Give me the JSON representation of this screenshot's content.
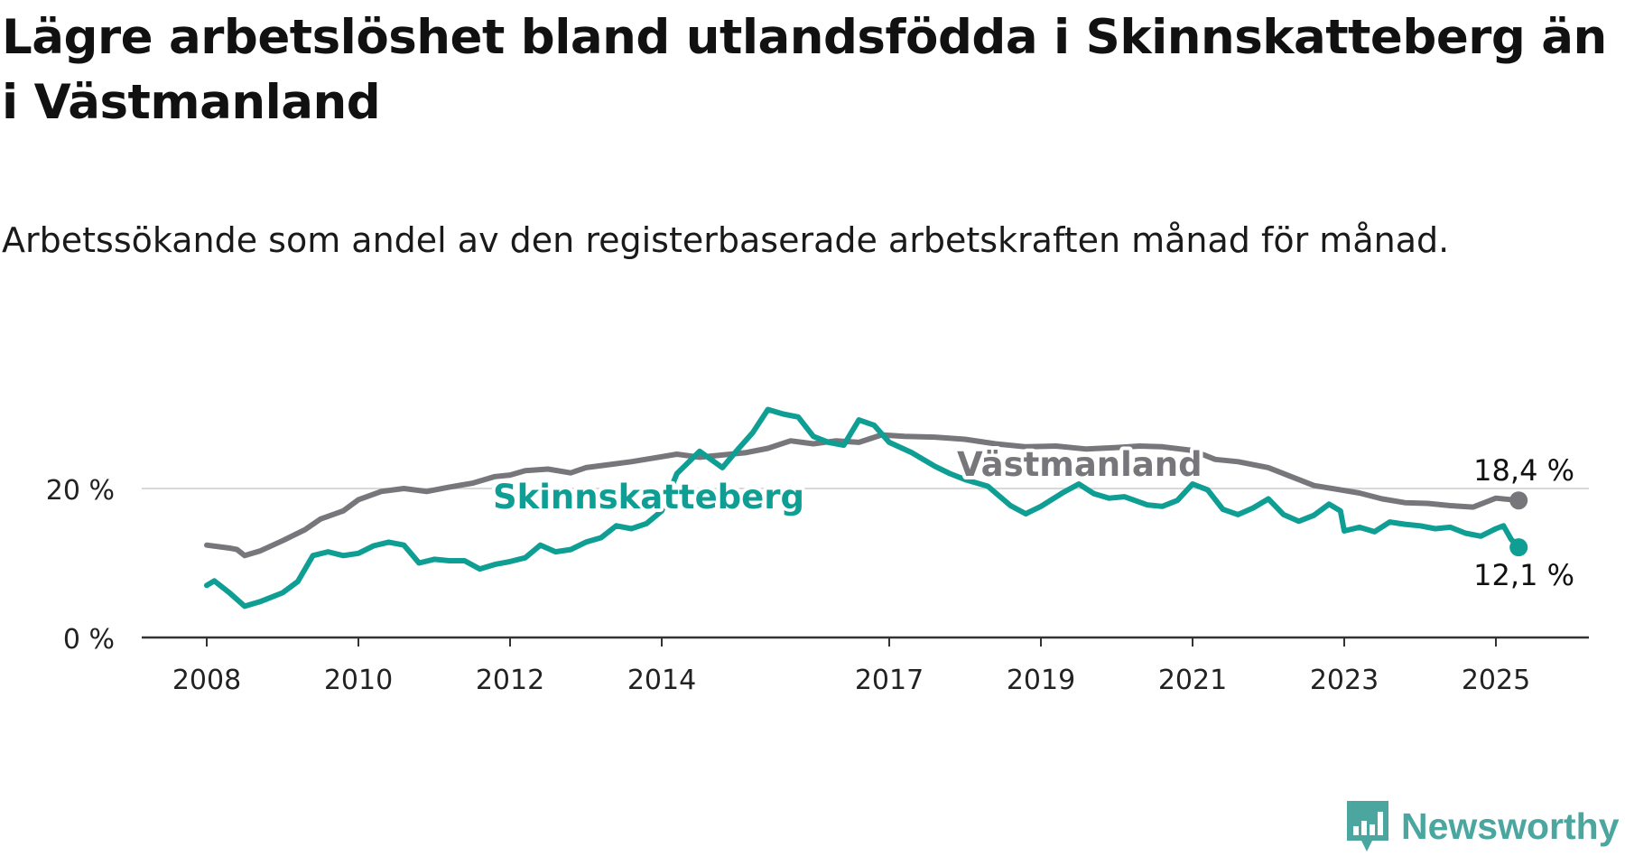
{
  "title": "Lägre arbetslöshet bland utlandsfödda i Skinnskatteberg än i Västmanland",
  "subtitle": "Arbetssökande som andel av den registerbaserade arbetskraften månad för månad.",
  "brand": {
    "name": "Newsworthy",
    "icon": "newsworthy-logo-icon",
    "color": "#4aa69e"
  },
  "chart_data": {
    "type": "line",
    "title": "Lägre arbetslöshet bland utlandsfödda i Skinnskatteberg än i Västmanland",
    "subtitle": "Arbetssökande som andel av den registerbaserade arbetskraften månad för månad.",
    "xlabel": "",
    "ylabel": "",
    "x_unit": "year",
    "xlim": [
      2007.2,
      2026.2
    ],
    "ylim": [
      0,
      30
    ],
    "y_ticks": [
      0,
      20
    ],
    "y_tick_labels": [
      "0 %",
      "20 %"
    ],
    "x_ticks": [
      2008,
      2010,
      2012,
      2014,
      2017,
      2019,
      2021,
      2023,
      2025
    ],
    "x_tick_labels": [
      "2008",
      "2010",
      "2012",
      "2014",
      "2017",
      "2019",
      "2021",
      "2023",
      "2025"
    ],
    "grid": "horizontal",
    "legend": "inline",
    "series": [
      {
        "name": "Västmanland",
        "color": "#77767b",
        "end_label": "18,4 %",
        "points": [
          [
            2008.0,
            12.4
          ],
          [
            2008.3,
            12.0
          ],
          [
            2008.4,
            11.8
          ],
          [
            2008.5,
            11.0
          ],
          [
            2008.7,
            11.6
          ],
          [
            2009.0,
            13.0
          ],
          [
            2009.3,
            14.5
          ],
          [
            2009.5,
            15.9
          ],
          [
            2009.8,
            17.0
          ],
          [
            2010.0,
            18.5
          ],
          [
            2010.3,
            19.6
          ],
          [
            2010.6,
            20.0
          ],
          [
            2010.9,
            19.6
          ],
          [
            2011.2,
            20.2
          ],
          [
            2011.5,
            20.7
          ],
          [
            2011.8,
            21.6
          ],
          [
            2012.0,
            21.8
          ],
          [
            2012.2,
            22.4
          ],
          [
            2012.5,
            22.6
          ],
          [
            2012.8,
            22.1
          ],
          [
            2013.0,
            22.8
          ],
          [
            2013.3,
            23.2
          ],
          [
            2013.6,
            23.6
          ],
          [
            2013.9,
            24.1
          ],
          [
            2014.2,
            24.6
          ],
          [
            2014.5,
            24.2
          ],
          [
            2014.8,
            24.5
          ],
          [
            2015.1,
            24.8
          ],
          [
            2015.4,
            25.4
          ],
          [
            2015.7,
            26.4
          ],
          [
            2016.0,
            26.0
          ],
          [
            2016.3,
            26.4
          ],
          [
            2016.6,
            26.2
          ],
          [
            2016.9,
            27.2
          ],
          [
            2017.2,
            27.0
          ],
          [
            2017.6,
            26.9
          ],
          [
            2018.0,
            26.6
          ],
          [
            2018.4,
            26.0
          ],
          [
            2018.8,
            25.6
          ],
          [
            2019.2,
            25.7
          ],
          [
            2019.6,
            25.3
          ],
          [
            2020.0,
            25.5
          ],
          [
            2020.3,
            25.7
          ],
          [
            2020.6,
            25.6
          ],
          [
            2021.0,
            25.1
          ],
          [
            2021.3,
            23.9
          ],
          [
            2021.6,
            23.6
          ],
          [
            2022.0,
            22.8
          ],
          [
            2022.3,
            21.6
          ],
          [
            2022.6,
            20.4
          ],
          [
            2022.9,
            19.9
          ],
          [
            2023.2,
            19.4
          ],
          [
            2023.5,
            18.6
          ],
          [
            2023.8,
            18.1
          ],
          [
            2024.1,
            18.0
          ],
          [
            2024.4,
            17.7
          ],
          [
            2024.7,
            17.5
          ],
          [
            2025.0,
            18.7
          ],
          [
            2025.3,
            18.4
          ]
        ]
      },
      {
        "name": "Skinnskatteberg",
        "color": "#0e9e94",
        "end_label": "12,1 %",
        "points": [
          [
            2008.0,
            7.0
          ],
          [
            2008.1,
            7.6
          ],
          [
            2008.3,
            6.0
          ],
          [
            2008.5,
            4.2
          ],
          [
            2008.7,
            4.8
          ],
          [
            2009.0,
            6.0
          ],
          [
            2009.2,
            7.5
          ],
          [
            2009.4,
            11.0
          ],
          [
            2009.6,
            11.5
          ],
          [
            2009.8,
            11.0
          ],
          [
            2010.0,
            11.3
          ],
          [
            2010.2,
            12.3
          ],
          [
            2010.4,
            12.8
          ],
          [
            2010.6,
            12.4
          ],
          [
            2010.8,
            10.0
          ],
          [
            2011.0,
            10.5
          ],
          [
            2011.2,
            10.3
          ],
          [
            2011.4,
            10.3
          ],
          [
            2011.6,
            9.2
          ],
          [
            2011.8,
            9.8
          ],
          [
            2012.0,
            10.2
          ],
          [
            2012.2,
            10.7
          ],
          [
            2012.4,
            12.4
          ],
          [
            2012.6,
            11.5
          ],
          [
            2012.8,
            11.8
          ],
          [
            2013.0,
            12.8
          ],
          [
            2013.2,
            13.4
          ],
          [
            2013.4,
            15.0
          ],
          [
            2013.6,
            14.6
          ],
          [
            2013.8,
            15.3
          ],
          [
            2014.0,
            17.0
          ],
          [
            2014.2,
            22.0
          ],
          [
            2014.5,
            25.0
          ],
          [
            2014.8,
            22.8
          ],
          [
            2015.0,
            25.2
          ],
          [
            2015.2,
            27.5
          ],
          [
            2015.4,
            30.6
          ],
          [
            2015.6,
            30.0
          ],
          [
            2015.8,
            29.6
          ],
          [
            2016.0,
            27.0
          ],
          [
            2016.2,
            26.2
          ],
          [
            2016.4,
            25.8
          ],
          [
            2016.6,
            29.2
          ],
          [
            2016.8,
            28.5
          ],
          [
            2017.0,
            26.2
          ],
          [
            2017.3,
            24.8
          ],
          [
            2017.6,
            23.0
          ],
          [
            2017.8,
            22.0
          ],
          [
            2018.0,
            21.2
          ],
          [
            2018.3,
            20.3
          ],
          [
            2018.6,
            17.7
          ],
          [
            2018.8,
            16.6
          ],
          [
            2019.0,
            17.6
          ],
          [
            2019.3,
            19.5
          ],
          [
            2019.5,
            20.6
          ],
          [
            2019.7,
            19.3
          ],
          [
            2019.9,
            18.7
          ],
          [
            2020.1,
            18.9
          ],
          [
            2020.4,
            17.8
          ],
          [
            2020.6,
            17.6
          ],
          [
            2020.8,
            18.4
          ],
          [
            2021.0,
            20.6
          ],
          [
            2021.2,
            19.8
          ],
          [
            2021.4,
            17.2
          ],
          [
            2021.6,
            16.5
          ],
          [
            2021.8,
            17.4
          ],
          [
            2022.0,
            18.6
          ],
          [
            2022.2,
            16.5
          ],
          [
            2022.4,
            15.6
          ],
          [
            2022.6,
            16.4
          ],
          [
            2022.8,
            17.9
          ],
          [
            2022.95,
            17.0
          ],
          [
            2023.0,
            14.3
          ],
          [
            2023.2,
            14.8
          ],
          [
            2023.4,
            14.2
          ],
          [
            2023.6,
            15.5
          ],
          [
            2023.8,
            15.2
          ],
          [
            2024.0,
            15.0
          ],
          [
            2024.2,
            14.6
          ],
          [
            2024.4,
            14.8
          ],
          [
            2024.6,
            14.0
          ],
          [
            2024.8,
            13.6
          ],
          [
            2025.0,
            14.6
          ],
          [
            2025.1,
            15.0
          ],
          [
            2025.2,
            13.2
          ],
          [
            2025.3,
            12.1
          ]
        ]
      }
    ]
  }
}
